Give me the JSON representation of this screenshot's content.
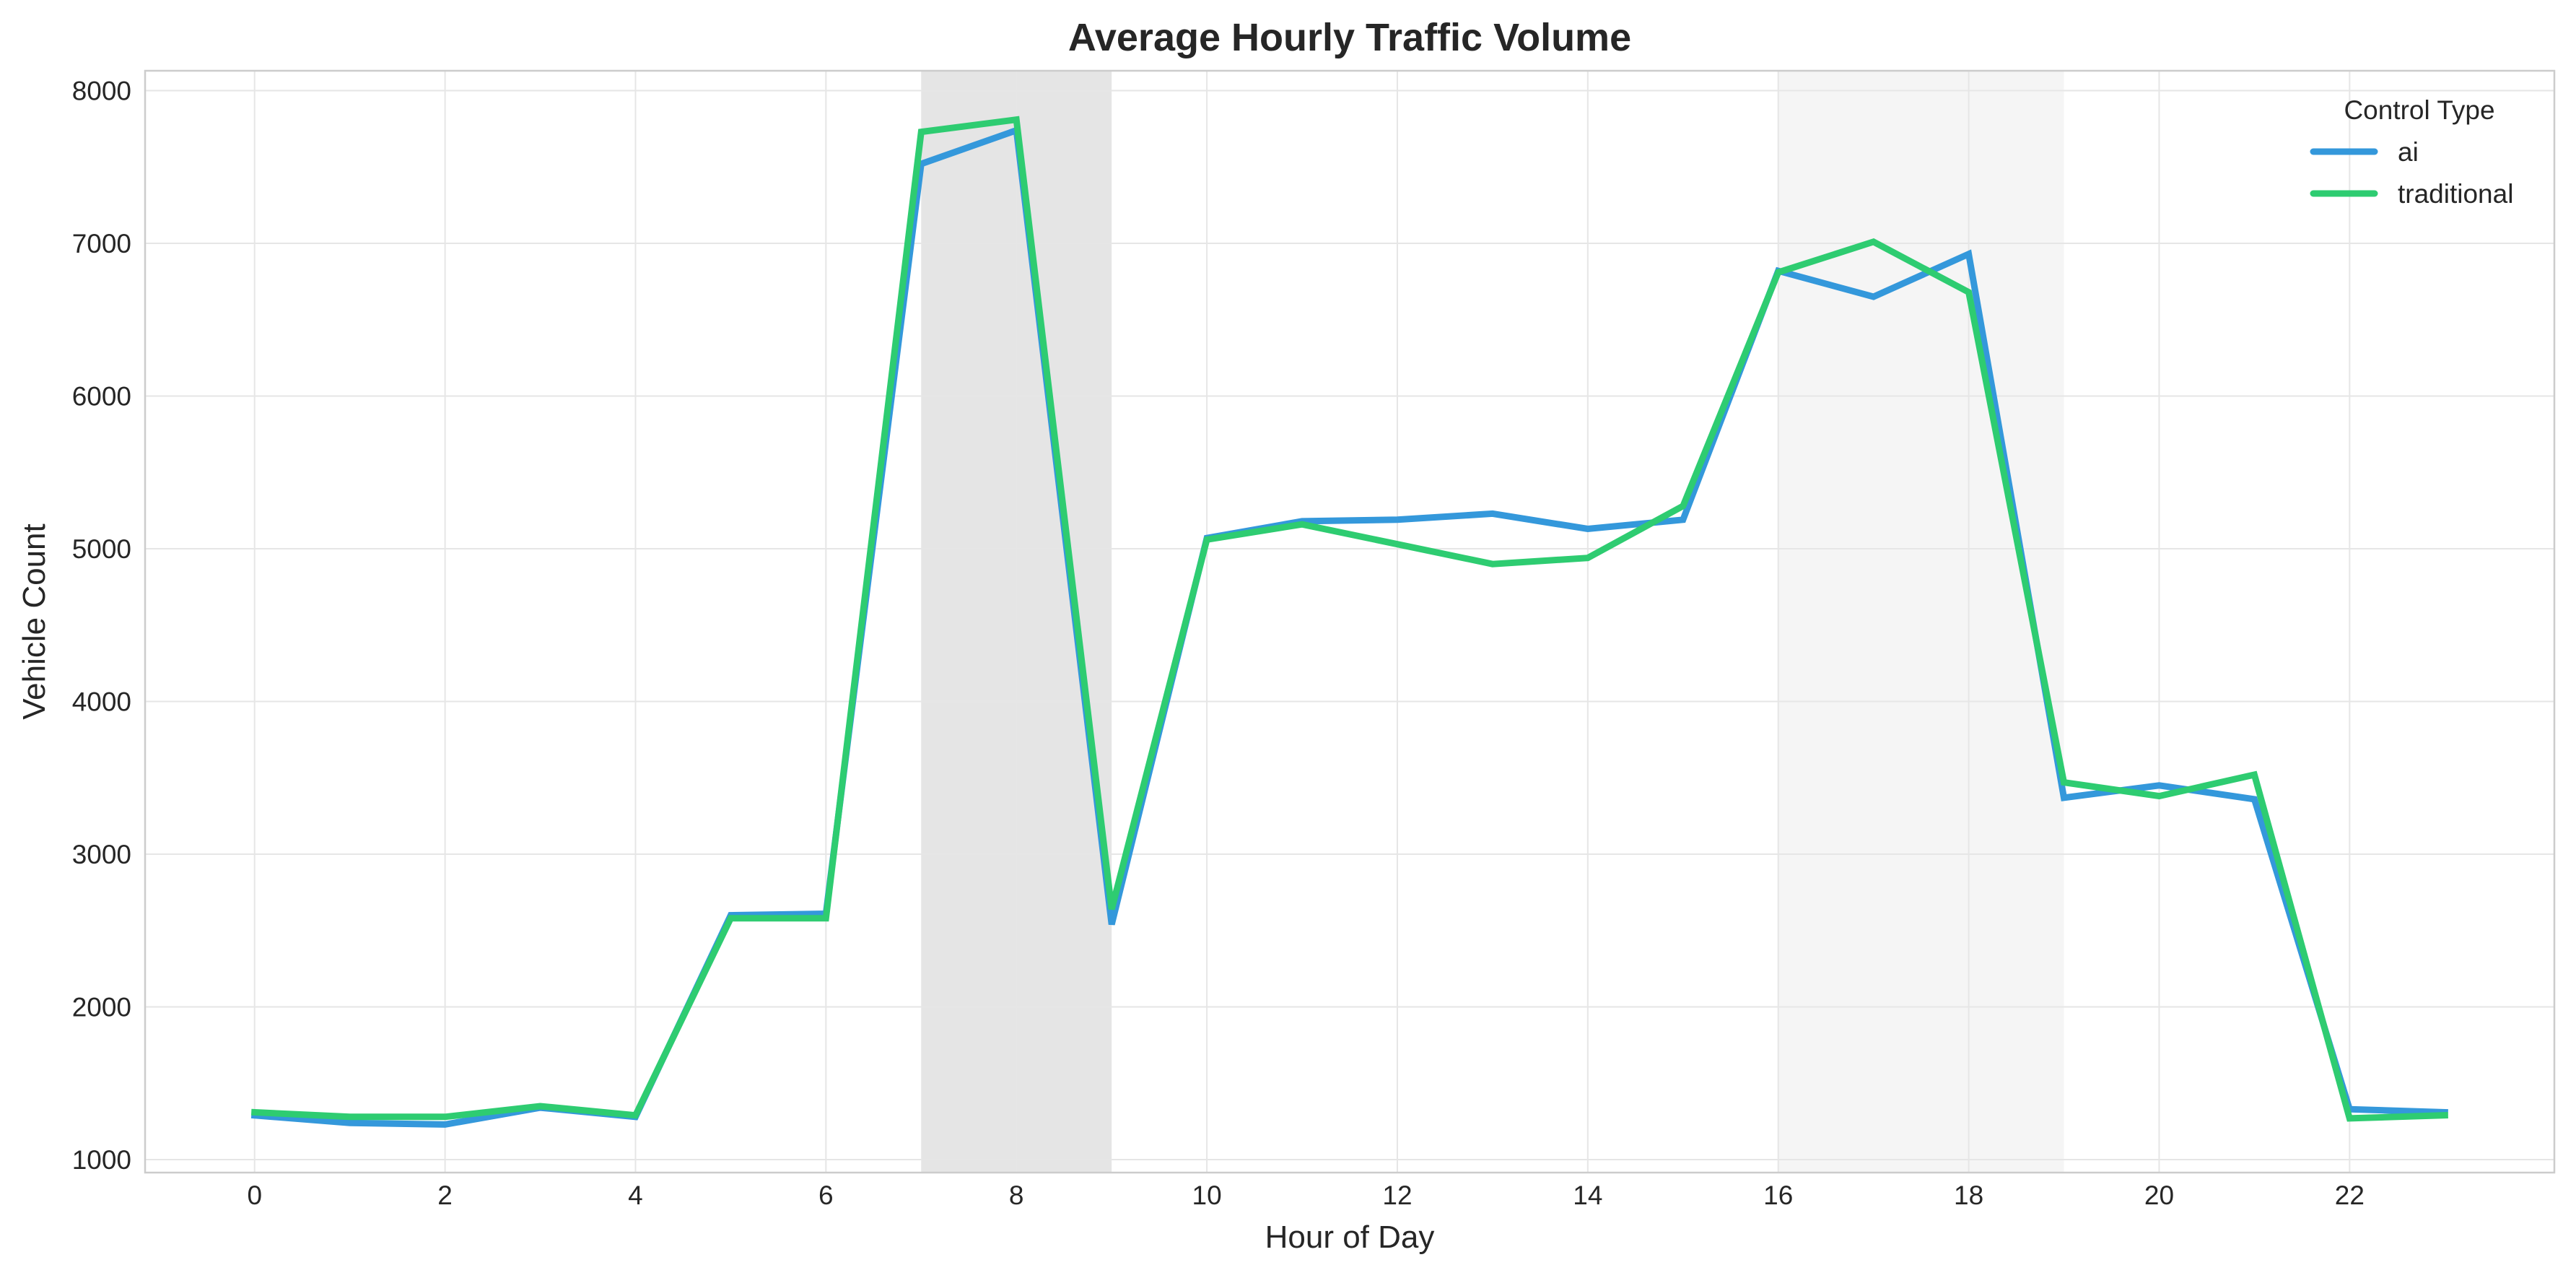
{
  "chart_data": {
    "type": "line",
    "title": "Average Hourly Traffic Volume",
    "xlabel": "Hour of Day",
    "ylabel": "Vehicle Count",
    "x": [
      0,
      1,
      2,
      3,
      4,
      5,
      6,
      7,
      8,
      9,
      10,
      11,
      12,
      13,
      14,
      15,
      16,
      17,
      18,
      19,
      20,
      21,
      22,
      23
    ],
    "xlim": [
      -1.15,
      24.15
    ],
    "ylim": [
      915,
      8130
    ],
    "xticks": [
      0,
      2,
      4,
      6,
      8,
      10,
      12,
      14,
      16,
      18,
      20,
      22
    ],
    "yticks": [
      1000,
      2000,
      3000,
      4000,
      5000,
      6000,
      7000,
      8000
    ],
    "grid": true,
    "legend": {
      "title": "Control Type",
      "placement": "top-right"
    },
    "shaded_regions": [
      {
        "x_start": 7,
        "x_end": 9,
        "color": "#e5e5e5"
      },
      {
        "x_start": 16,
        "x_end": 19,
        "color": "#f5f5f5"
      }
    ],
    "series": [
      {
        "name": "ai",
        "color": "#3498db",
        "values": [
          1290,
          1240,
          1230,
          1340,
          1280,
          2600,
          2610,
          7520,
          7740,
          2540,
          5070,
          5180,
          5190,
          5230,
          5130,
          5190,
          6820,
          6650,
          6930,
          3370,
          3450,
          3360,
          1330,
          1310
        ]
      },
      {
        "name": "traditional",
        "color": "#2ecc71",
        "values": [
          1310,
          1280,
          1280,
          1350,
          1290,
          2580,
          2580,
          7730,
          7810,
          2640,
          5060,
          5160,
          5030,
          4900,
          4940,
          5280,
          6810,
          7010,
          6680,
          3470,
          3380,
          3520,
          1270,
          1290
        ]
      }
    ]
  }
}
